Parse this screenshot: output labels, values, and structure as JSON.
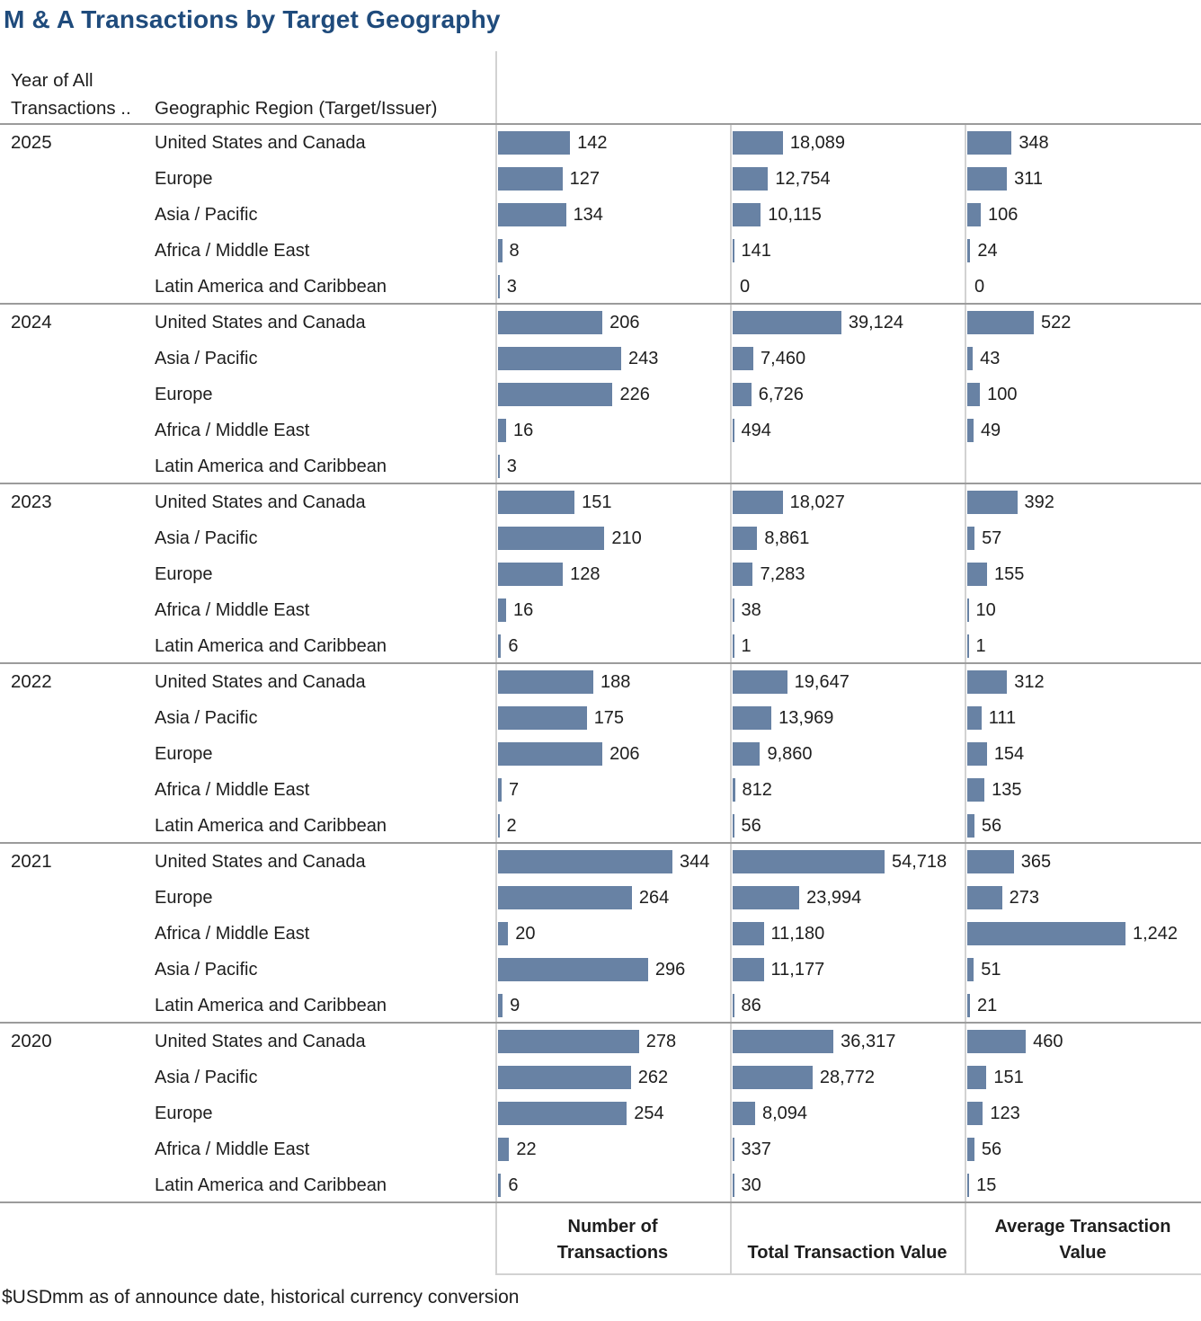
{
  "title": "M & A Transactions by Target Geography",
  "header": {
    "row_dimension_line1": "Year of All",
    "row_dimension_line2": "Transactions ..",
    "col_dimension": "Geographic Region (Target/Issuer)"
  },
  "footnote": "$USDmm as of announce date, historical currency conversion",
  "colors": {
    "bar": "#6882A4",
    "title": "#1f4b7c",
    "group_separator": "#9b9b9b",
    "column_divider": "#d2d2d2",
    "text": "#1e1e1e"
  },
  "chart_data": {
    "type": "bar",
    "orientation": "horizontal",
    "unit_note": "$USDmm",
    "measures": [
      {
        "key": "num",
        "label": "Number of Transactions",
        "axis_max": 344
      },
      {
        "key": "total",
        "label": "Total Transaction Value",
        "axis_max": 54718
      },
      {
        "key": "avg",
        "label": "Average Transaction Value",
        "axis_max": 1242
      }
    ],
    "groups": [
      {
        "year": "2025",
        "rows": [
          {
            "region": "United States and Canada",
            "num": 142,
            "total": 18089,
            "avg": 348
          },
          {
            "region": "Europe",
            "num": 127,
            "total": 12754,
            "avg": 311
          },
          {
            "region": "Asia / Pacific",
            "num": 134,
            "total": 10115,
            "avg": 106
          },
          {
            "region": "Africa / Middle East",
            "num": 8,
            "total": 141,
            "avg": 24
          },
          {
            "region": "Latin America and Caribbean",
            "num": 3,
            "total": 0,
            "avg": 0
          }
        ]
      },
      {
        "year": "2024",
        "rows": [
          {
            "region": "United States and Canada",
            "num": 206,
            "total": 39124,
            "avg": 522
          },
          {
            "region": "Asia / Pacific",
            "num": 243,
            "total": 7460,
            "avg": 43
          },
          {
            "region": "Europe",
            "num": 226,
            "total": 6726,
            "avg": 100
          },
          {
            "region": "Africa / Middle East",
            "num": 16,
            "total": 494,
            "avg": 49
          },
          {
            "region": "Latin America and Caribbean",
            "num": 3,
            "total": null,
            "avg": null
          }
        ]
      },
      {
        "year": "2023",
        "rows": [
          {
            "region": "United States and Canada",
            "num": 151,
            "total": 18027,
            "avg": 392
          },
          {
            "region": "Asia / Pacific",
            "num": 210,
            "total": 8861,
            "avg": 57
          },
          {
            "region": "Europe",
            "num": 128,
            "total": 7283,
            "avg": 155
          },
          {
            "region": "Africa / Middle East",
            "num": 16,
            "total": 38,
            "avg": 10
          },
          {
            "region": "Latin America and Caribbean",
            "num": 6,
            "total": 1,
            "avg": 1
          }
        ]
      },
      {
        "year": "2022",
        "rows": [
          {
            "region": "United States and Canada",
            "num": 188,
            "total": 19647,
            "avg": 312
          },
          {
            "region": "Asia / Pacific",
            "num": 175,
            "total": 13969,
            "avg": 111
          },
          {
            "region": "Europe",
            "num": 206,
            "total": 9860,
            "avg": 154
          },
          {
            "region": "Africa / Middle East",
            "num": 7,
            "total": 812,
            "avg": 135
          },
          {
            "region": "Latin America and Caribbean",
            "num": 2,
            "total": 56,
            "avg": 56
          }
        ]
      },
      {
        "year": "2021",
        "rows": [
          {
            "region": "United States and Canada",
            "num": 344,
            "total": 54718,
            "avg": 365
          },
          {
            "region": "Europe",
            "num": 264,
            "total": 23994,
            "avg": 273
          },
          {
            "region": "Africa / Middle East",
            "num": 20,
            "total": 11180,
            "avg": 1242
          },
          {
            "region": "Asia / Pacific",
            "num": 296,
            "total": 11177,
            "avg": 51
          },
          {
            "region": "Latin America and Caribbean",
            "num": 9,
            "total": 86,
            "avg": 21
          }
        ]
      },
      {
        "year": "2020",
        "rows": [
          {
            "region": "United States and Canada",
            "num": 278,
            "total": 36317,
            "avg": 460
          },
          {
            "region": "Asia / Pacific",
            "num": 262,
            "total": 28772,
            "avg": 151
          },
          {
            "region": "Europe",
            "num": 254,
            "total": 8094,
            "avg": 123
          },
          {
            "region": "Africa / Middle East",
            "num": 22,
            "total": 337,
            "avg": 56
          },
          {
            "region": "Latin America and Caribbean",
            "num": 6,
            "total": 30,
            "avg": 15
          }
        ]
      }
    ]
  }
}
